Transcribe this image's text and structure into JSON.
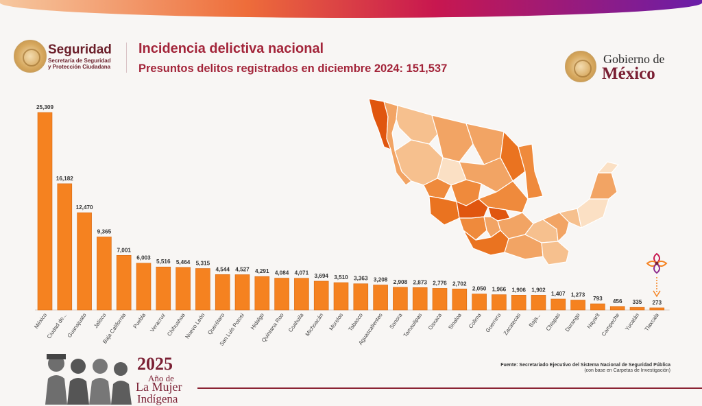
{
  "header": {
    "seguridad_title": "Seguridad",
    "seguridad_sub": "Secretaría de Seguridad\ny Protección Ciudadana",
    "title": "Incidencia delictiva nacional",
    "subtitle": "Presuntos delitos registrados en diciembre 2024: 151,537",
    "gobierno_de": "Gobierno de",
    "gobierno_mexico": "México"
  },
  "footer": {
    "year": "2025",
    "year_line2": "Año de",
    "year_line3": "La Mujer",
    "year_line4": "Indígena",
    "source_line1": "Fuente: Secretariado Ejecutivo del Sistema Nacional de Seguridad Pública",
    "source_line2": "(con base en Carpetas de Investigación)"
  },
  "colors": {
    "bar": "#f58220",
    "bar_dark": "#d86a12",
    "title": "#a3253a",
    "brand": "#7a1f33",
    "map_scale": [
      "#fbe0c4",
      "#f6c08e",
      "#f2a464",
      "#ef8a3c",
      "#ea7320",
      "#e0560f"
    ]
  },
  "chart_data": {
    "type": "bar",
    "title": "Incidencia delictiva nacional",
    "subtitle": "Presuntos delitos registrados en diciembre 2024: 151,537",
    "categories": [
      "México",
      "Ciudad de...",
      "Guanajuato",
      "Jalisco",
      "Baja California",
      "Puebla",
      "Veracruz",
      "Chihuahua",
      "Nuevo León",
      "Querétaro",
      "San Luis Potosí",
      "Hidalgo",
      "Quintana Roo",
      "Coahuila",
      "Michoacán",
      "Morelos",
      "Tabasco",
      "Aguascalientes",
      "Sonora",
      "Tamaulipas",
      "Oaxaca",
      "Sinaloa",
      "Colima",
      "Guerrero",
      "Zacatecas",
      "Baja...",
      "Chiapas",
      "Durango",
      "Nayarit",
      "Campeche",
      "Yucatán",
      "Tlaxcala"
    ],
    "values": [
      25309,
      16182,
      12470,
      9365,
      7001,
      6003,
      5516,
      5464,
      5315,
      4544,
      4527,
      4291,
      4084,
      4071,
      3694,
      3510,
      3363,
      3208,
      2908,
      2873,
      2776,
      2702,
      2050,
      1966,
      1906,
      1902,
      1407,
      1273,
      793,
      456,
      335,
      273
    ],
    "value_labels": [
      "25,309",
      "16,182",
      "12,470",
      "9,365",
      "7,001",
      "6,003",
      "5,516",
      "5,464",
      "5,315",
      "4,544",
      "4,527",
      "4,291",
      "4,084",
      "4,071",
      "3,694",
      "3,510",
      "3,363",
      "3,208",
      "2,908",
      "2,873",
      "2,776",
      "2,702",
      "2,050",
      "1,966",
      "1,906",
      "1,902",
      "1,407",
      "1,273",
      "793",
      "456",
      "335",
      "273"
    ],
    "ylim": [
      0,
      25309
    ],
    "grid": false,
    "legend": "none"
  }
}
